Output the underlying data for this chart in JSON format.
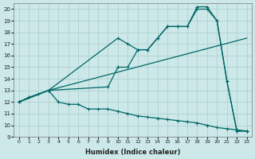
{
  "xlabel": "Humidex (Indice chaleur)",
  "bg_color": "#cce8e8",
  "line_color": "#006666",
  "grid_color": "#aacccc",
  "xlim": [
    -0.5,
    23.5
  ],
  "ylim": [
    9,
    20.5
  ],
  "yticks": [
    9,
    10,
    11,
    12,
    13,
    14,
    15,
    16,
    17,
    18,
    19,
    20
  ],
  "xticks": [
    0,
    1,
    2,
    3,
    4,
    5,
    6,
    7,
    8,
    9,
    10,
    11,
    12,
    13,
    14,
    15,
    16,
    17,
    18,
    19,
    20,
    21,
    22,
    23
  ],
  "series": [
    {
      "x": [
        0,
        1,
        2,
        3,
        4,
        5,
        6,
        7,
        8,
        9,
        10,
        11,
        12,
        13,
        14,
        15,
        16,
        17,
        18,
        19,
        20,
        21,
        22,
        23
      ],
      "y": [
        12,
        12.4,
        12.7,
        13.0,
        12.0,
        11.8,
        11.8,
        11.4,
        11.4,
        11.4,
        11.2,
        11.0,
        10.8,
        10.7,
        10.6,
        10.5,
        10.4,
        10.3,
        10.2,
        10.0,
        9.8,
        9.7,
        9.6,
        9.5
      ]
    },
    {
      "x": [
        0,
        3,
        23
      ],
      "y": [
        12,
        13,
        17.5
      ]
    },
    {
      "x": [
        0,
        3,
        10,
        11,
        12,
        13,
        14,
        15,
        16,
        17,
        18,
        19,
        20,
        21,
        22,
        23
      ],
      "y": [
        12,
        13,
        17.5,
        17.0,
        16.5,
        16.5,
        17.5,
        18.5,
        18.5,
        18.5,
        20.0,
        20.0,
        19.0,
        13.8,
        9.5,
        9.5
      ]
    },
    {
      "x": [
        0,
        3,
        9,
        10,
        11,
        12,
        13,
        14,
        15,
        16,
        17,
        18,
        19,
        20,
        21,
        22,
        23
      ],
      "y": [
        12,
        13,
        13.3,
        15.0,
        15.0,
        16.5,
        16.5,
        17.5,
        18.5,
        18.5,
        18.5,
        20.2,
        20.2,
        19.0,
        13.8,
        9.5,
        9.5
      ]
    }
  ]
}
